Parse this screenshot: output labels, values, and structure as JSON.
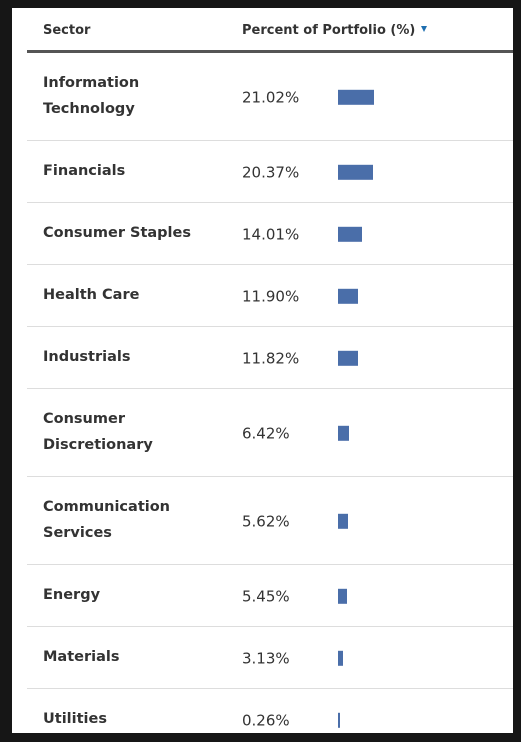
{
  "chart_data": {
    "type": "bar",
    "category_header": "Sector",
    "value_header": "Percent of Portfolio (%)",
    "categories": [
      "Information Technology",
      "Financials",
      "Consumer Staples",
      "Health Care",
      "Industrials",
      "Consumer Discretionary",
      "Communication Services",
      "Energy",
      "Materials",
      "Utilities"
    ],
    "values": [
      21.02,
      20.37,
      14.01,
      11.9,
      11.82,
      6.42,
      5.62,
      5.45,
      3.13,
      0.26
    ],
    "value_labels": [
      "21.02%",
      "20.37%",
      "14.01%",
      "11.90%",
      "11.82%",
      "6.42%",
      "5.62%",
      "5.45%",
      "3.13%",
      "0.26%"
    ],
    "color": "#4a6ea9"
  }
}
